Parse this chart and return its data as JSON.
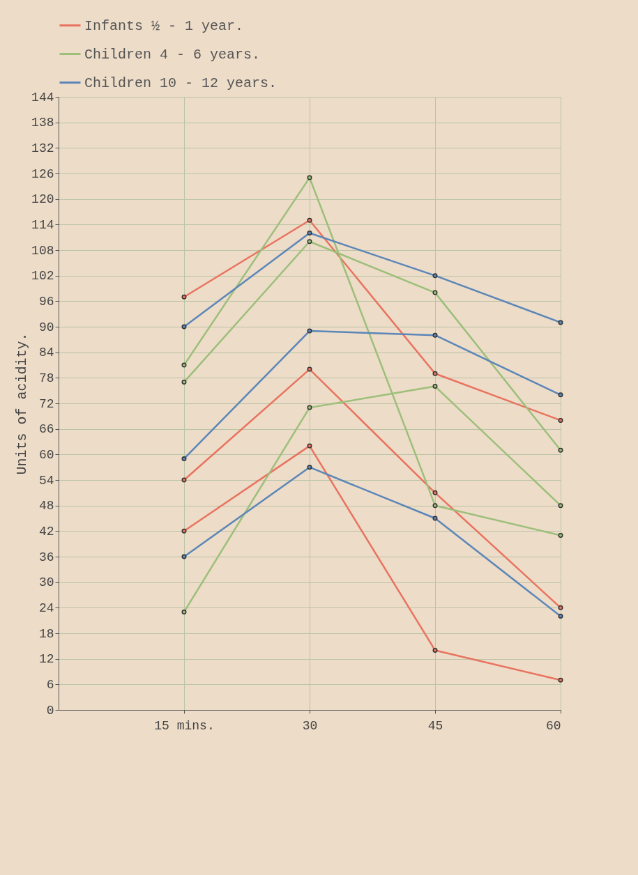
{
  "chart_data": {
    "type": "line",
    "ylabel": "Units of acidity.",
    "x": [
      15,
      30,
      45,
      60
    ],
    "xlim": [
      0,
      60
    ],
    "xticks": [
      {
        "value": 15,
        "label": "15 mins."
      },
      30,
      45,
      60
    ],
    "ylim": [
      0,
      144
    ],
    "yticks": [
      0,
      6,
      12,
      18,
      24,
      30,
      36,
      42,
      48,
      54,
      60,
      66,
      72,
      78,
      84,
      90,
      96,
      102,
      108,
      114,
      120,
      126,
      132,
      138,
      144
    ],
    "grid": true,
    "legend": "top",
    "marker": "circle",
    "line_style": "solid",
    "series": [
      {
        "name": "Infants ½ - 1 year.",
        "color": "#e8735f",
        "values": [
          97,
          115,
          79,
          68
        ]
      },
      {
        "color": "#e8735f",
        "values": [
          54,
          80,
          51,
          24
        ]
      },
      {
        "color": "#e8735f",
        "values": [
          42,
          62,
          14,
          7
        ]
      },
      {
        "name": "Children 4 - 6 years.",
        "color": "#9cbf7a",
        "values": [
          81,
          125,
          48,
          41
        ]
      },
      {
        "color": "#9cbf7a",
        "values": [
          77,
          110,
          98,
          61
        ]
      },
      {
        "color": "#9cbf7a",
        "values": [
          23,
          71,
          76,
          48
        ]
      },
      {
        "name": "Children 10 - 12 years.",
        "color": "#5b86b8",
        "values": [
          90,
          112,
          102,
          91
        ]
      },
      {
        "color": "#5b86b8",
        "values": [
          59,
          89,
          88,
          74
        ]
      },
      {
        "color": "#5b86b8",
        "values": [
          36,
          57,
          45,
          22
        ]
      }
    ]
  }
}
